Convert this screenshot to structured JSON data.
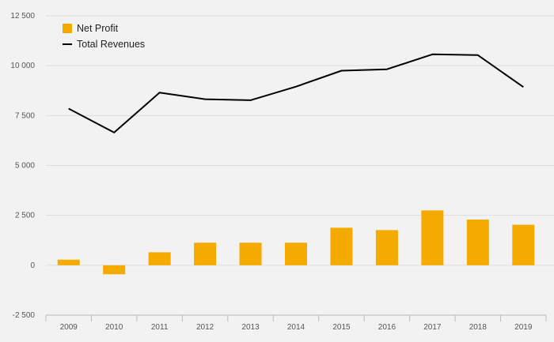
{
  "chart_data": {
    "type": "bar",
    "title": "",
    "xlabel": "",
    "ylabel": "",
    "ylim": [
      -2500,
      12500
    ],
    "yticks": [
      -2500,
      0,
      2500,
      5000,
      7500,
      10000,
      12500
    ],
    "ytick_labels": [
      "-2 500",
      "0",
      "2 500",
      "5 000",
      "7 500",
      "10 000",
      "12 500"
    ],
    "grid": true,
    "legend_position": "top-left",
    "categories": [
      "2009",
      "2010",
      "2011",
      "2012",
      "2013",
      "2014",
      "2015",
      "2016",
      "2017",
      "2018",
      "2019"
    ],
    "series": [
      {
        "name": "Net Profit",
        "type": "bar",
        "color": "#f5aa00",
        "values": [
          280,
          -450,
          650,
          1130,
          1130,
          1130,
          1880,
          1760,
          2750,
          2290,
          2030
        ]
      },
      {
        "name": "Total Revenues",
        "type": "line",
        "color": "#000000",
        "values": [
          7850,
          6650,
          8650,
          8320,
          8270,
          8950,
          9750,
          9820,
          10570,
          10530,
          8930
        ]
      }
    ]
  }
}
